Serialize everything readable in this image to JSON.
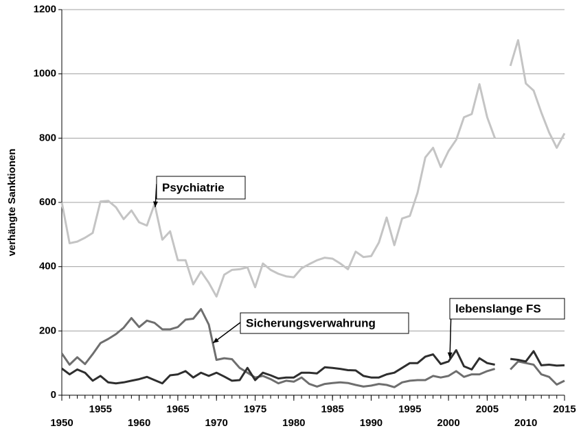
{
  "chart_data": {
    "type": "line",
    "ylabel": "verhängte Sanktionen",
    "x": [
      1950,
      1951,
      1952,
      1953,
      1954,
      1955,
      1956,
      1957,
      1958,
      1959,
      1960,
      1961,
      1962,
      1963,
      1964,
      1965,
      1966,
      1967,
      1968,
      1969,
      1970,
      1971,
      1972,
      1973,
      1974,
      1975,
      1976,
      1977,
      1978,
      1979,
      1980,
      1981,
      1982,
      1983,
      1984,
      1985,
      1986,
      1987,
      1988,
      1989,
      1990,
      1991,
      1992,
      1993,
      1994,
      1995,
      1996,
      1997,
      1998,
      1999,
      2000,
      2001,
      2002,
      2003,
      2004,
      2005,
      2006,
      2007,
      2008,
      2009,
      2010,
      2011,
      2012,
      2013,
      2014,
      2015
    ],
    "series": [
      {
        "name": "Psychiatrie",
        "color": "#c4c4c4",
        "values": [
          600,
          473,
          478,
          490,
          505,
          603,
          605,
          585,
          548,
          575,
          538,
          528,
          595,
          484,
          510,
          420,
          420,
          345,
          385,
          350,
          307,
          375,
          390,
          392,
          398,
          336,
          410,
          390,
          378,
          370,
          367,
          395,
          408,
          420,
          428,
          425,
          410,
          392,
          447,
          430,
          433,
          475,
          553,
          467,
          550,
          558,
          630,
          740,
          770,
          710,
          760,
          795,
          865,
          875,
          968,
          865,
          800,
          null,
          1025,
          1105,
          970,
          948,
          880,
          818,
          770,
          815
        ]
      },
      {
        "name": "Sicherungsverwahrung",
        "color": "#6e6e6e",
        "values": [
          130,
          95,
          118,
          97,
          128,
          162,
          175,
          190,
          210,
          240,
          212,
          232,
          225,
          205,
          205,
          212,
          235,
          238,
          268,
          220,
          110,
          115,
          112,
          85,
          70,
          55,
          60,
          50,
          37,
          45,
          42,
          55,
          35,
          27,
          35,
          38,
          40,
          38,
          32,
          27,
          30,
          35,
          32,
          25,
          40,
          45,
          47,
          47,
          60,
          55,
          60,
          75,
          57,
          65,
          65,
          75,
          82,
          null,
          80,
          105,
          100,
          95,
          65,
          57,
          33,
          45
        ]
      },
      {
        "name": "lebenslange FS",
        "color": "#2e2e2e",
        "values": [
          83,
          65,
          80,
          70,
          45,
          60,
          40,
          37,
          40,
          45,
          50,
          57,
          47,
          37,
          62,
          65,
          75,
          55,
          70,
          60,
          70,
          58,
          45,
          47,
          85,
          47,
          70,
          62,
          52,
          55,
          55,
          70,
          70,
          68,
          87,
          85,
          82,
          78,
          77,
          60,
          55,
          55,
          65,
          70,
          85,
          100,
          100,
          120,
          127,
          97,
          105,
          140,
          90,
          80,
          115,
          100,
          95,
          null,
          113,
          110,
          105,
          137,
          93,
          95,
          92,
          93
        ]
      }
    ],
    "xlim": [
      1950,
      2015
    ],
    "xticks": [
      1950,
      1955,
      1960,
      1965,
      1970,
      1975,
      1980,
      1985,
      1990,
      1995,
      2000,
      2005,
      2010,
      2015
    ],
    "ylim": [
      0,
      1200
    ],
    "yticks": [
      0,
      200,
      400,
      600,
      800,
      1000,
      1200
    ],
    "grid": true
  }
}
